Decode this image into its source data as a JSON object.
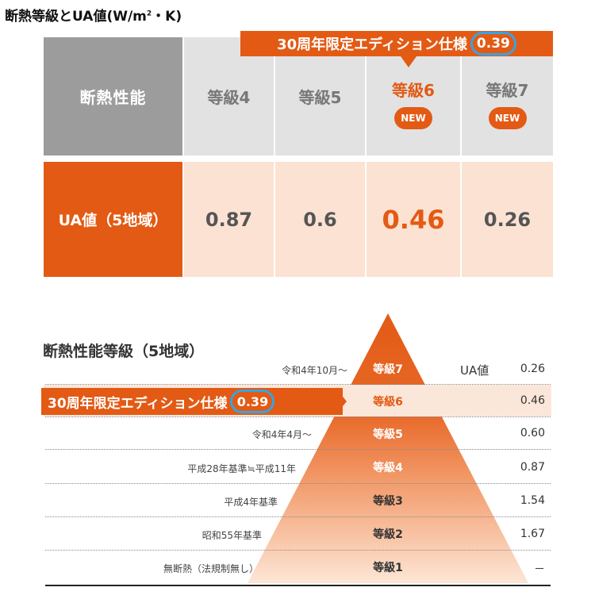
{
  "title": {
    "main": "断熱等級とUA値(W/m",
    "sup": "2",
    "end": "・K)"
  },
  "top_banner": {
    "label": "30周年限定エディション仕様",
    "value": "0.39"
  },
  "table": {
    "header_label": "断熱性能",
    "row_label": "UA値（5地域）",
    "columns": [
      {
        "grade": "等級4",
        "ua": "0.87",
        "new": ""
      },
      {
        "grade": "等級5",
        "ua": "0.6",
        "new": ""
      },
      {
        "grade": "等級6",
        "ua": "0.46",
        "new": "NEW"
      },
      {
        "grade": "等級7",
        "ua": "0.26",
        "new": "NEW"
      }
    ]
  },
  "pyramid": {
    "heading": "断熱性能等級（5地域）",
    "ua_header": "UA値",
    "banner": {
      "label": "30周年限定エディション仕様",
      "value": "0.39"
    },
    "rows": [
      {
        "note": "令和4年10月～",
        "grade": "等級7",
        "ua": "0.26"
      },
      {
        "note": "",
        "grade": "等級6",
        "ua": "0.46"
      },
      {
        "note": "令和4年4月～",
        "grade": "等級5",
        "ua": "0.60"
      },
      {
        "note": "平成28年基準≒平成11年",
        "grade": "等級4",
        "ua": "0.87"
      },
      {
        "note": "平成4年基準",
        "grade": "等級3",
        "ua": "1.54"
      },
      {
        "note": "昭和55年基準",
        "grade": "等級2",
        "ua": "1.67"
      },
      {
        "note": "無断熱（法規制無し）",
        "grade": "等級1",
        "ua": "－"
      }
    ]
  },
  "colors": {
    "accent": "#e35a14",
    "light": "#fbe2d2",
    "highlight": "#3aa2e0"
  }
}
